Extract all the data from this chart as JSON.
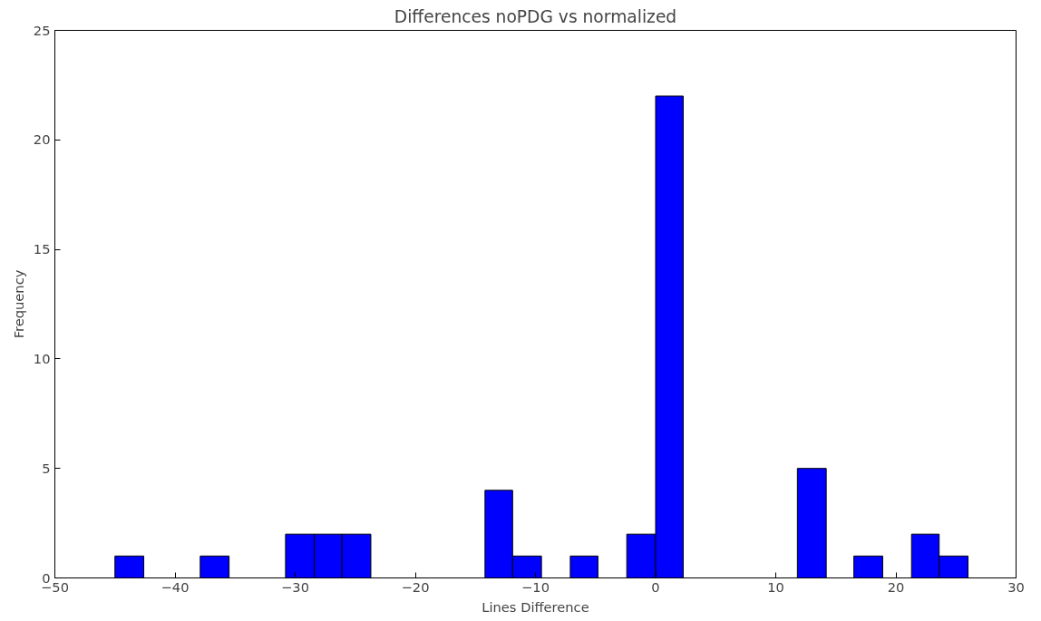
{
  "chart_data": {
    "type": "histogram",
    "title": "Differences noPDG vs normalized",
    "xlabel": "Lines Difference",
    "ylabel": "Frequency",
    "bins": [
      -45,
      -42.6,
      -37.9,
      -35.5,
      -30.8,
      -28.4,
      -26.1,
      -23.7,
      -14.2,
      -11.9,
      -9.5,
      -7.1,
      -4.8,
      -2.4,
      0,
      2.3,
      11.8,
      14.2,
      16.5,
      18.9,
      21.3,
      23.6,
      26
    ],
    "values": [
      1,
      0,
      1,
      0,
      2,
      2,
      2,
      0,
      4,
      1,
      0,
      1,
      0,
      2,
      22,
      0,
      5,
      0,
      1,
      0,
      2,
      1
    ],
    "color": "#0000ff",
    "xlim": [
      -50,
      30
    ],
    "xticks": [
      {
        "value": -50,
        "label": "−50"
      },
      {
        "value": -40,
        "label": "−40"
      },
      {
        "value": -30,
        "label": "−30"
      },
      {
        "value": -20,
        "label": "−20"
      },
      {
        "value": -10,
        "label": "−10"
      },
      0,
      10,
      20,
      30
    ],
    "ylim": [
      0,
      25
    ],
    "yticks": [
      0,
      5,
      10,
      15,
      20,
      25
    ],
    "grid": false
  }
}
